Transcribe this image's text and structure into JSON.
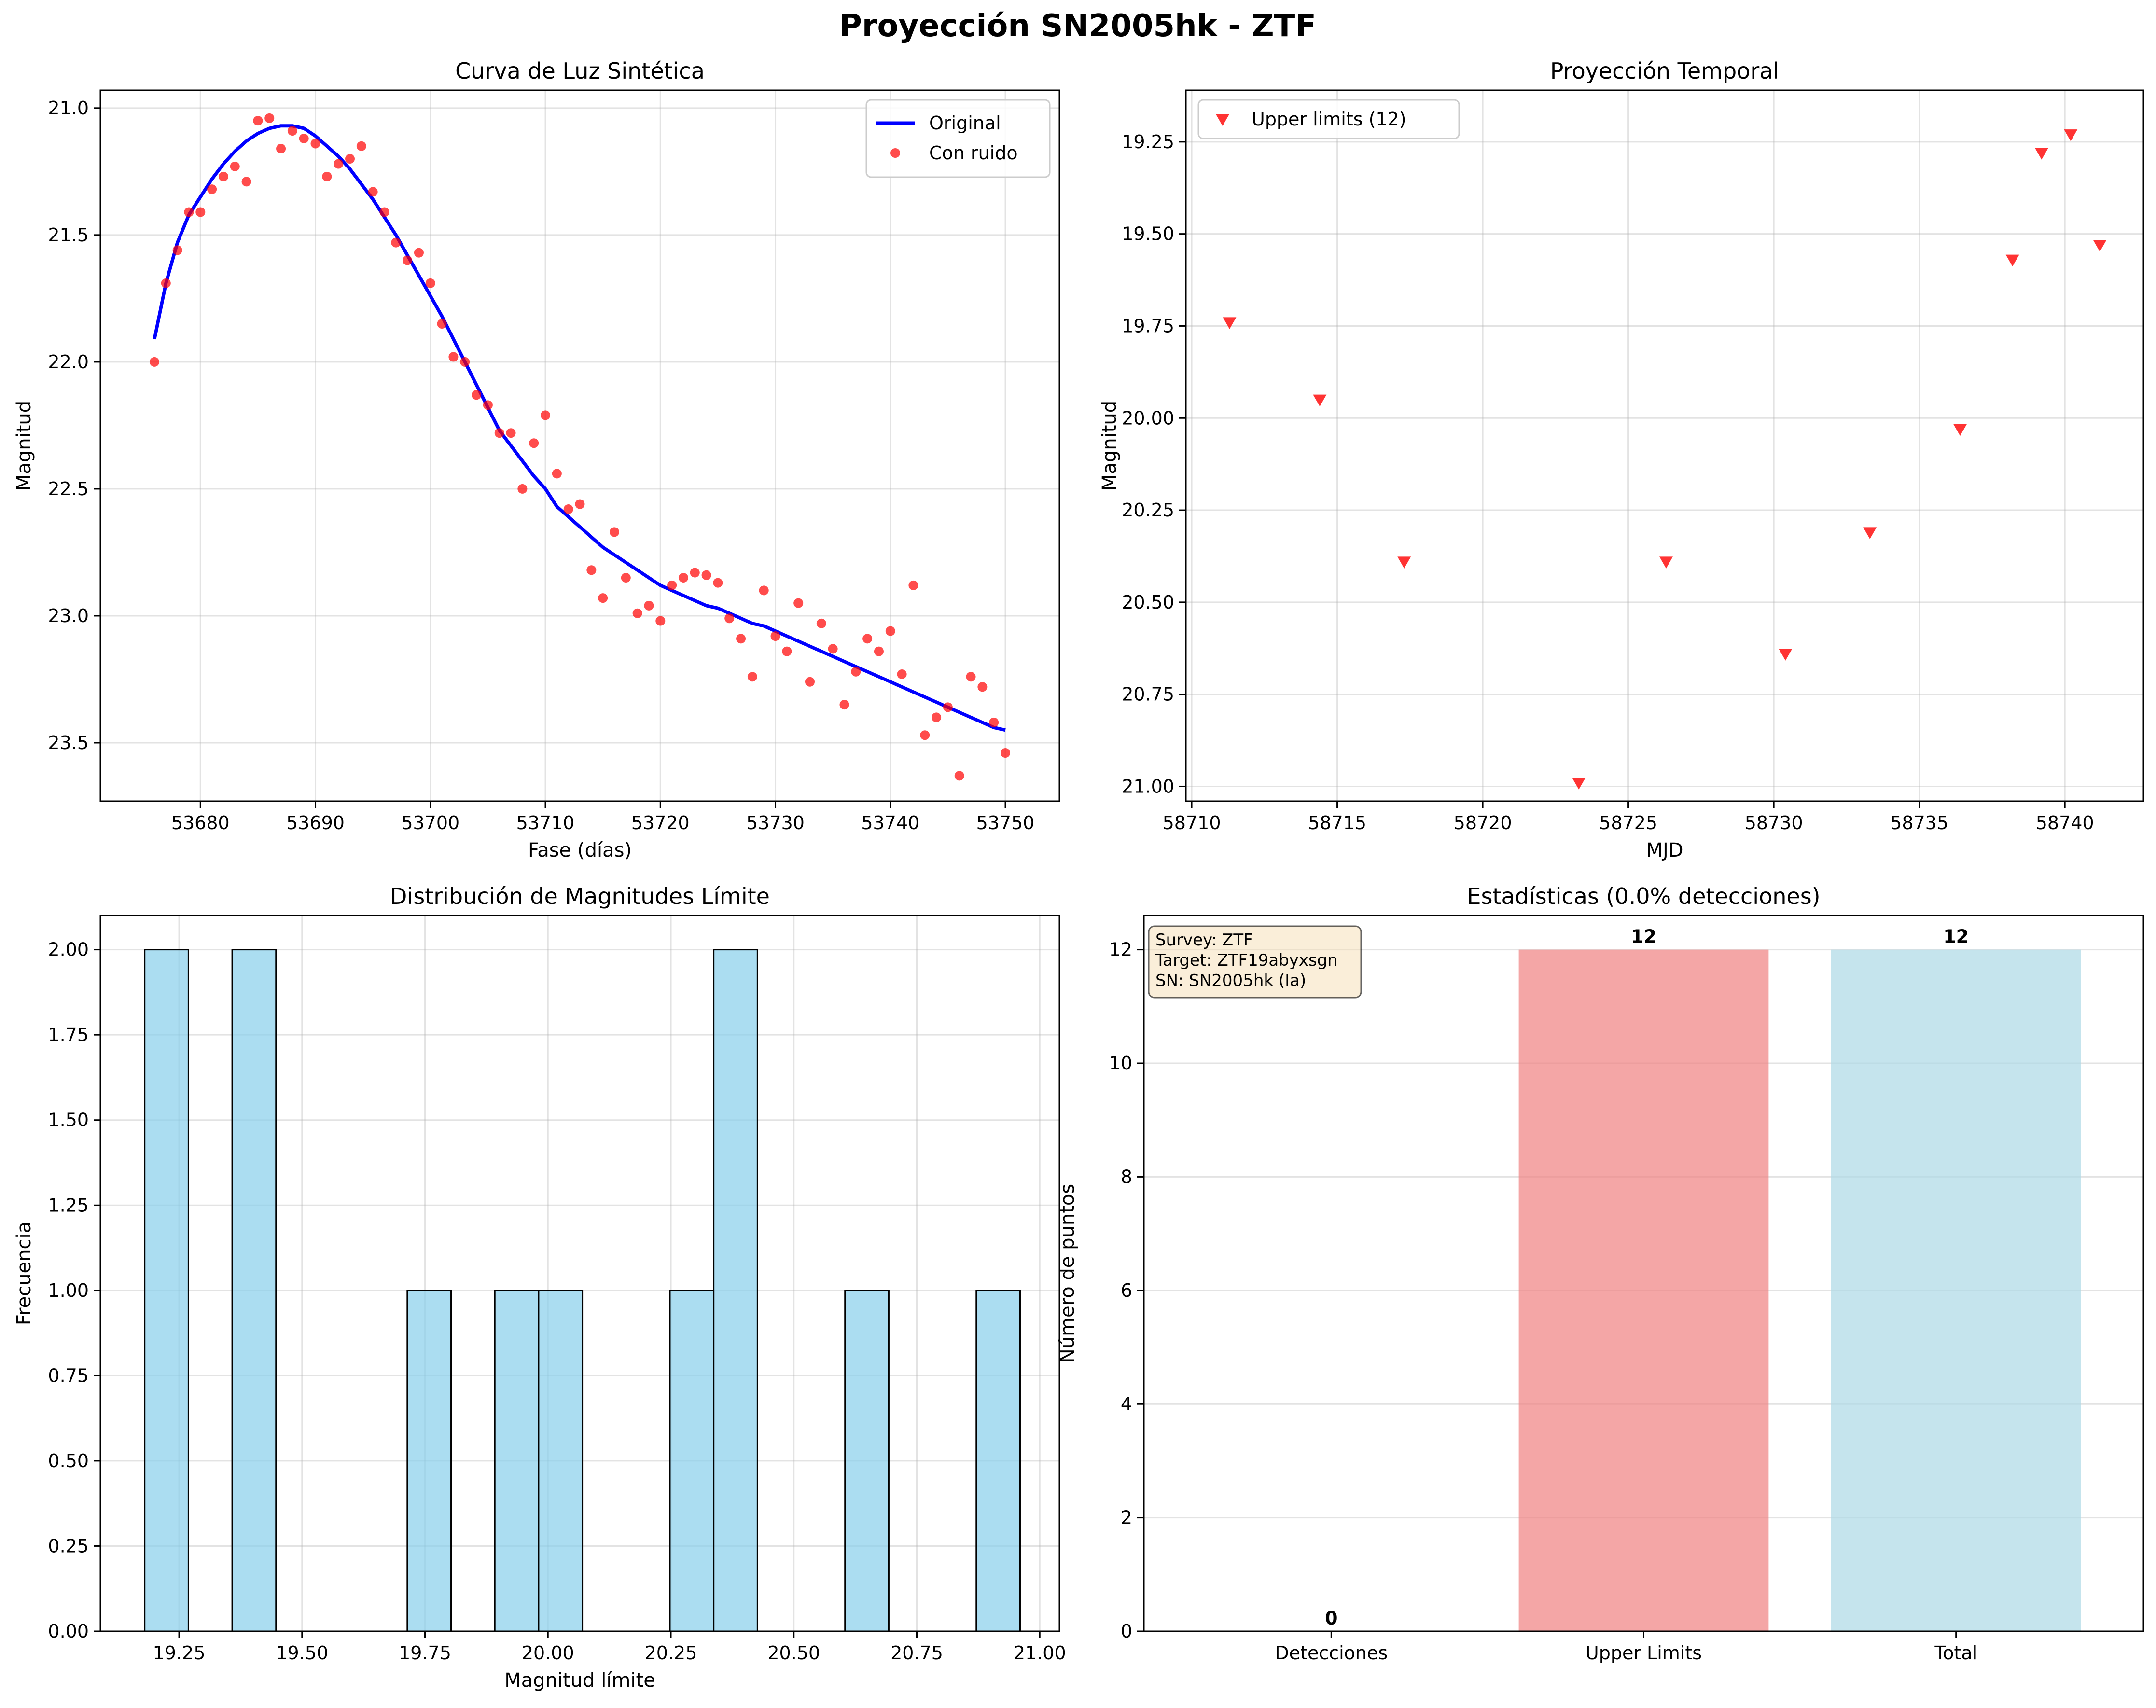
{
  "suptitle": "Proyección SN2005hk - ZTF",
  "chart_data": [
    {
      "type": "line",
      "title": "Curva de Luz Sintética",
      "xlabel": "Fase (días)",
      "ylabel": "Magnitud",
      "xlim": [
        53671.3,
        53754.7
      ],
      "ylim": [
        23.73,
        20.93
      ],
      "y_inverted": true,
      "xticks": [
        53680,
        53690,
        53700,
        53710,
        53720,
        53730,
        53740,
        53750
      ],
      "yticks": [
        21.0,
        21.5,
        22.0,
        22.5,
        23.0,
        23.5
      ],
      "ytick_labels": [
        "21.0",
        "21.5",
        "22.0",
        "22.5",
        "23.0",
        "23.5"
      ],
      "grid": true,
      "legend": "top-right",
      "series": [
        {
          "name": "Original",
          "kind": "line",
          "color": "#0000ff",
          "x": [
            53676,
            53677,
            53678,
            53679,
            53680,
            53681,
            53682,
            53683,
            53684,
            53685,
            53686,
            53687,
            53688,
            53689,
            53690,
            53691,
            53692,
            53693,
            53694,
            53695,
            53696,
            53697,
            53698,
            53699,
            53700,
            53701,
            53702,
            53703,
            53704,
            53705,
            53706,
            53707,
            53708,
            53709,
            53710,
            53711,
            53712,
            53713,
            53714,
            53715,
            53716,
            53717,
            53718,
            53719,
            53720,
            53721,
            53722,
            53723,
            53724,
            53725,
            53726,
            53727,
            53728,
            53729,
            53730,
            53731,
            53732,
            53733,
            53734,
            53735,
            53736,
            53737,
            53738,
            53739,
            53740,
            53741,
            53742,
            53743,
            53744,
            53745,
            53746,
            53747,
            53748,
            53749,
            53750
          ],
          "y": [
            21.91,
            21.69,
            21.53,
            21.42,
            21.35,
            21.28,
            21.22,
            21.17,
            21.13,
            21.1,
            21.08,
            21.07,
            21.07,
            21.08,
            21.11,
            21.15,
            21.19,
            21.24,
            21.3,
            21.36,
            21.43,
            21.5,
            21.58,
            21.66,
            21.74,
            21.82,
            21.91,
            22.0,
            22.09,
            22.18,
            22.27,
            22.33,
            22.39,
            22.45,
            22.5,
            22.57,
            22.61,
            22.65,
            22.69,
            22.73,
            22.76,
            22.79,
            22.82,
            22.85,
            22.88,
            22.9,
            22.92,
            22.94,
            22.96,
            22.97,
            22.99,
            23.01,
            23.03,
            23.04,
            23.06,
            23.08,
            23.1,
            23.12,
            23.14,
            23.16,
            23.18,
            23.2,
            23.22,
            23.24,
            23.26,
            23.28,
            23.3,
            23.32,
            23.34,
            23.36,
            23.38,
            23.4,
            23.42,
            23.44,
            23.45
          ]
        },
        {
          "name": "Con ruido",
          "kind": "scatter",
          "color": "#ff0000",
          "x": [
            53676,
            53677,
            53678,
            53679,
            53680,
            53681,
            53682,
            53683,
            53684,
            53685,
            53686,
            53687,
            53688,
            53689,
            53690,
            53691,
            53692,
            53693,
            53694,
            53695,
            53696,
            53697,
            53698,
            53699,
            53700,
            53701,
            53702,
            53703,
            53704,
            53705,
            53706,
            53707,
            53708,
            53709,
            53710,
            53711,
            53712,
            53713,
            53714,
            53715,
            53716,
            53717,
            53718,
            53719,
            53720,
            53721,
            53722,
            53723,
            53724,
            53725,
            53726,
            53727,
            53728,
            53729,
            53730,
            53731,
            53732,
            53733,
            53734,
            53735,
            53736,
            53737,
            53738,
            53739,
            53740,
            53741,
            53742,
            53743,
            53744,
            53745,
            53746,
            53747,
            53748,
            53749,
            53750
          ],
          "y": [
            22.0,
            21.69,
            21.56,
            21.41,
            21.41,
            21.32,
            21.27,
            21.23,
            21.29,
            21.05,
            21.04,
            21.16,
            21.09,
            21.12,
            21.14,
            21.27,
            21.22,
            21.2,
            21.15,
            21.33,
            21.41,
            21.53,
            21.6,
            21.57,
            21.69,
            21.85,
            21.98,
            22.0,
            22.13,
            22.17,
            22.28,
            22.28,
            22.5,
            22.32,
            22.21,
            22.44,
            22.58,
            22.56,
            22.82,
            22.93,
            22.67,
            22.85,
            22.99,
            22.96,
            23.02,
            22.88,
            22.85,
            22.83,
            22.84,
            22.87,
            23.01,
            23.09,
            23.24,
            22.9,
            23.08,
            23.14,
            22.95,
            23.26,
            23.03,
            23.13,
            23.35,
            23.22,
            23.09,
            23.14,
            23.06,
            23.23,
            22.88,
            23.47,
            23.4,
            23.36,
            23.63,
            23.24,
            23.28,
            23.42,
            23.54
          ]
        }
      ]
    },
    {
      "type": "scatter",
      "title": "Proyección Temporal",
      "xlabel": "MJD",
      "ylabel": "Magnitud",
      "xlim": [
        58709.8,
        58742.7
      ],
      "ylim": [
        21.04,
        19.11
      ],
      "y_inverted": true,
      "xticks": [
        58710,
        58715,
        58720,
        58725,
        58730,
        58735,
        58740
      ],
      "yticks": [
        19.25,
        19.5,
        19.75,
        20.0,
        20.25,
        20.5,
        20.75,
        21.0
      ],
      "ytick_labels": [
        "19.25",
        "19.50",
        "19.75",
        "20.00",
        "20.25",
        "20.50",
        "20.75",
        "21.00"
      ],
      "grid": true,
      "legend": "top-left",
      "series": [
        {
          "name": "Upper limits (12)",
          "marker": "triangle-down",
          "color": "#ff0000",
          "x": [
            58711.3,
            58714.4,
            58717.3,
            58723.3,
            58726.3,
            58730.4,
            58733.3,
            58736.4,
            58738.2,
            58739.2,
            58740.2,
            58741.2
          ],
          "y": [
            19.74,
            19.95,
            20.39,
            20.99,
            20.39,
            20.64,
            20.31,
            20.03,
            19.57,
            19.28,
            19.23,
            19.53
          ]
        }
      ]
    },
    {
      "type": "bar",
      "subtype": "histogram",
      "title": "Distribución de Magnitudes Límite",
      "xlabel": "Magnitud límite",
      "ylabel": "Frecuencia",
      "xlim": [
        19.09,
        21.04
      ],
      "ylim": [
        0,
        2.1
      ],
      "xticks": [
        19.25,
        19.5,
        19.75,
        20.0,
        20.25,
        20.5,
        20.75,
        21.0
      ],
      "xtick_labels": [
        "19.25",
        "19.50",
        "19.75",
        "20.00",
        "20.25",
        "20.50",
        "20.75",
        "21.00"
      ],
      "yticks": [
        0,
        0.25,
        0.5,
        0.75,
        1.0,
        1.25,
        1.5,
        1.75,
        2.0
      ],
      "ytick_labels": [
        "0.00",
        "0.25",
        "0.50",
        "0.75",
        "1.00",
        "1.25",
        "1.50",
        "1.75",
        "2.00"
      ],
      "grid": true,
      "bar_color": "#87ceeb",
      "bin_edges": [
        19.18,
        19.269,
        19.358,
        19.447,
        19.536,
        19.625,
        19.714,
        19.803,
        19.892,
        19.981,
        20.07,
        20.159,
        20.248,
        20.337,
        20.426,
        20.515,
        20.604,
        20.693,
        20.782,
        20.871,
        20.96
      ],
      "values": [
        2,
        0,
        2,
        0,
        0,
        0,
        1,
        0,
        1,
        1,
        0,
        0,
        1,
        2,
        0,
        0,
        1,
        0,
        0,
        1
      ]
    },
    {
      "type": "bar",
      "title": "Estadísticas (0.0% detecciones)",
      "xlabel": "",
      "ylabel": "Número de puntos",
      "ylim": [
        0,
        12.6
      ],
      "yticks": [
        0,
        2,
        4,
        6,
        8,
        10,
        12
      ],
      "grid": true,
      "categories": [
        "Detecciones",
        "Upper Limits",
        "Total"
      ],
      "values": [
        0,
        12,
        12
      ],
      "value_labels": [
        "0",
        "12",
        "12"
      ],
      "colors": [
        "#90ee90",
        "#f08080",
        "#add8e6"
      ],
      "info_box": [
        "Survey: ZTF",
        "Target: ZTF19abyxsgn",
        "SN: SN2005hk (Ia)"
      ]
    }
  ]
}
